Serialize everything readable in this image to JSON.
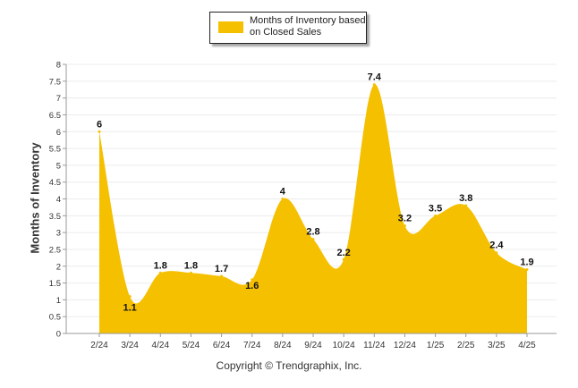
{
  "legend": {
    "label": "Months of Inventory based on Closed Sales",
    "color": "#f5c000"
  },
  "footer": {
    "copyright": "Copyright © Trendgraphix, Inc."
  },
  "chart_data": {
    "type": "area",
    "title": "",
    "xlabel": "",
    "ylabel": "Months of Inventory",
    "ylim": [
      0,
      8
    ],
    "yticks": [
      "0",
      "0.5",
      "1",
      "1.5",
      "2",
      "2.5",
      "3",
      "3.5",
      "4",
      "4.5",
      "5",
      "5.5",
      "6",
      "6.5",
      "7",
      "7.5",
      "8"
    ],
    "grid": true,
    "legend_position": "top",
    "categories": [
      "2/24",
      "3/24",
      "4/24",
      "5/24",
      "6/24",
      "7/24",
      "8/24",
      "9/24",
      "10/24",
      "11/24",
      "12/24",
      "1/25",
      "2/25",
      "3/25",
      "4/25"
    ],
    "series": [
      {
        "name": "Months of Inventory based on Closed Sales",
        "values": [
          6,
          1.1,
          1.8,
          1.8,
          1.7,
          1.6,
          4,
          2.8,
          2.2,
          7.4,
          3.2,
          3.5,
          3.8,
          2.4,
          1.9
        ],
        "labels": [
          "6",
          "1.1",
          "1.8",
          "1.8",
          "1.7",
          "1.6",
          "4",
          "2.8",
          "2.2",
          "7.4",
          "3.2",
          "3.5",
          "3.8",
          "2.4",
          "1.9"
        ],
        "color": "#f5c000"
      }
    ]
  }
}
